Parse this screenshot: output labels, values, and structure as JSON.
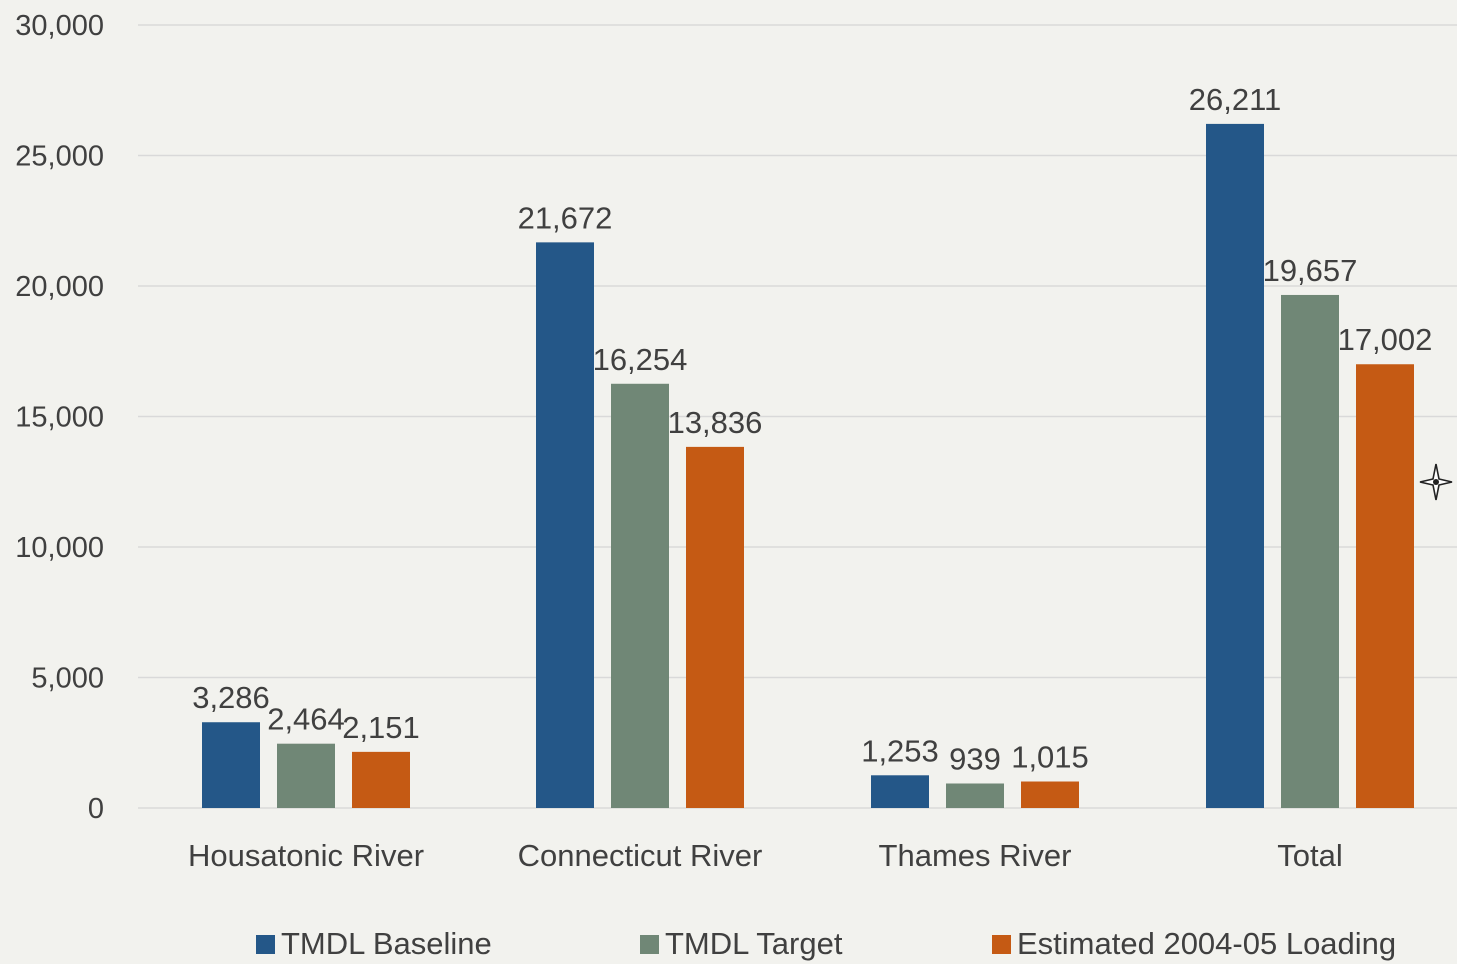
{
  "chart_data": {
    "type": "bar",
    "categories": [
      "Housatonic River",
      "Connecticut River",
      "Thames River",
      "Total"
    ],
    "series": [
      {
        "name": "TMDL Baseline",
        "values": [
          3286,
          21672,
          1253,
          26211
        ],
        "color": "#245788"
      },
      {
        "name": "TMDL Target",
        "values": [
          2464,
          16254,
          939,
          19657
        ],
        "color": "#708776"
      },
      {
        "name": "Estimated 2004-05 Loading",
        "values": [
          2151,
          13836,
          1015,
          17002
        ],
        "color": "#c55a14"
      }
    ],
    "data_labels": [
      [
        "3,286",
        "21,672",
        "1,253",
        "26,211"
      ],
      [
        "2,464",
        "16,254",
        "939",
        "19,657"
      ],
      [
        "2,151",
        "13,836",
        "1,015",
        "17,002"
      ]
    ],
    "y_ticks": [
      0,
      5000,
      10000,
      15000,
      20000,
      25000,
      30000
    ],
    "y_tick_labels": [
      "0",
      "5,000",
      "10,000",
      "15,000",
      "20,000",
      "25,000",
      "30,000"
    ],
    "ylim": [
      0,
      30000
    ],
    "grid": true,
    "legend_position": "bottom",
    "colors": {
      "background": "#f2f2ee",
      "gridline": "#d9d9d9",
      "text": "#404040"
    }
  },
  "cursor": {
    "icon": "move-cursor-icon"
  }
}
